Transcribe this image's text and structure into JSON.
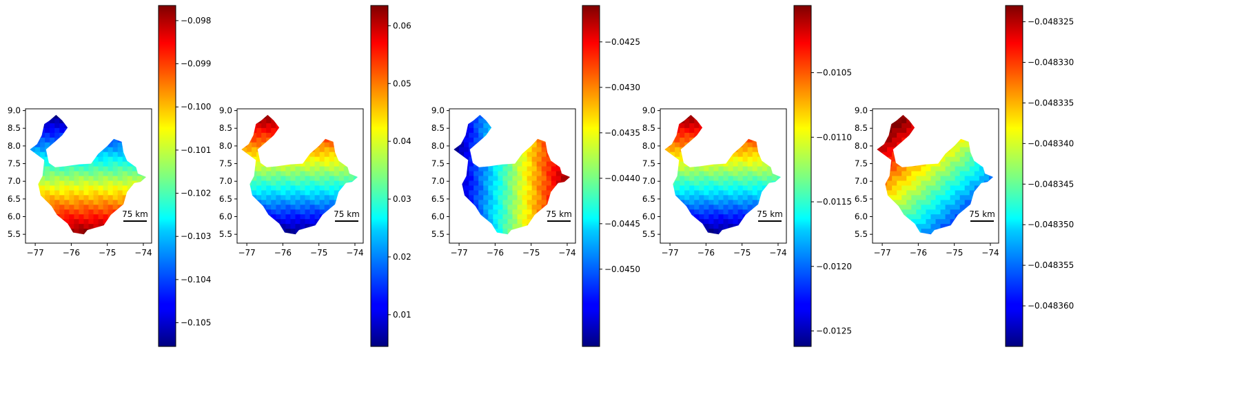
{
  "chart_data": [
    {
      "type": "heatmap",
      "title": "",
      "map": {
        "x_ticks": [
          -77,
          -76,
          -75,
          -74
        ],
        "y_ticks": [
          5.5,
          6.0,
          6.5,
          7.0,
          7.5,
          8.0,
          8.5,
          9.0
        ],
        "xlim": [
          -77.27,
          -73.77
        ],
        "ylim": [
          5.25,
          9.05
        ],
        "scale_bar": "75 km"
      },
      "colorbar": {
        "range": [
          -0.10555,
          -0.09765
        ],
        "ticks": [
          -0.098,
          -0.099,
          -0.1,
          -0.101,
          -0.102,
          -0.103,
          -0.104,
          -0.105
        ],
        "tick_labels": [
          "−0.098",
          "−0.099",
          "−0.100",
          "−0.101",
          "−0.102",
          "−0.103",
          "−0.104",
          "−0.105"
        ]
      },
      "gradient": {
        "direction": "south",
        "low_region": "north",
        "high_region": "south"
      }
    },
    {
      "type": "heatmap",
      "title": "",
      "map": {
        "x_ticks": [
          -77,
          -76,
          -75,
          -74
        ],
        "y_ticks": [
          5.5,
          6.0,
          6.5,
          7.0,
          7.5,
          8.0,
          8.5,
          9.0
        ],
        "xlim": [
          -77.27,
          -73.77
        ],
        "ylim": [
          5.25,
          9.05
        ],
        "scale_bar": "75 km"
      },
      "colorbar": {
        "range": [
          0.0045,
          0.0635
        ],
        "ticks": [
          0.06,
          0.05,
          0.04,
          0.03,
          0.02,
          0.01
        ],
        "tick_labels": [
          "0.06",
          "0.05",
          "0.04",
          "0.03",
          "0.02",
          "0.01"
        ]
      },
      "gradient": {
        "direction": "north",
        "low_region": "south",
        "high_region": "north"
      }
    },
    {
      "type": "heatmap",
      "title": "",
      "map": {
        "x_ticks": [
          -77,
          -76,
          -75,
          -74
        ],
        "y_ticks": [
          5.5,
          6.0,
          6.5,
          7.0,
          7.5,
          8.0,
          8.5,
          9.0
        ],
        "xlim": [
          -77.27,
          -73.77
        ],
        "ylim": [
          5.25,
          9.05
        ],
        "scale_bar": "75 km"
      },
      "colorbar": {
        "range": [
          -0.04585,
          -0.0421
        ],
        "ticks": [
          -0.0425,
          -0.043,
          -0.0435,
          -0.044,
          -0.0445,
          -0.045
        ],
        "tick_labels": [
          "−0.0425",
          "−0.0430",
          "−0.0435",
          "−0.0440",
          "−0.0445",
          "−0.0450"
        ]
      },
      "gradient": {
        "direction": "east",
        "low_region": "west",
        "high_region": "east"
      }
    },
    {
      "type": "heatmap",
      "title": "",
      "map": {
        "x_ticks": [
          -77,
          -76,
          -75,
          -74
        ],
        "y_ticks": [
          5.5,
          6.0,
          6.5,
          7.0,
          7.5,
          8.0,
          8.5,
          9.0
        ],
        "xlim": [
          -77.27,
          -73.77
        ],
        "ylim": [
          5.25,
          9.05
        ],
        "scale_bar": "75 km"
      },
      "colorbar": {
        "range": [
          -0.01262,
          -0.00998
        ],
        "ticks": [
          -0.0105,
          -0.011,
          -0.0115,
          -0.012,
          -0.0125
        ],
        "tick_labels": [
          "−0.0105",
          "−0.0110",
          "−0.0115",
          "−0.0120",
          "−0.0125"
        ]
      },
      "gradient": {
        "direction": "north",
        "low_region": "south",
        "high_region": "north"
      }
    },
    {
      "type": "heatmap",
      "title": "",
      "map": {
        "x_ticks": [
          -77,
          -76,
          -75,
          -74
        ],
        "y_ticks": [
          5.5,
          6.0,
          6.5,
          7.0,
          7.5,
          8.0,
          8.5,
          9.0
        ],
        "xlim": [
          -77.27,
          -73.77
        ],
        "ylim": [
          5.25,
          9.05
        ],
        "scale_bar": "75 km"
      },
      "colorbar": {
        "range": [
          -0.048365,
          -0.048323
        ],
        "ticks": [
          -0.048325,
          -0.04833,
          -0.048335,
          -0.04834,
          -0.048345,
          -0.04835,
          -0.048355,
          -0.04836
        ],
        "tick_labels": [
          "−0.048325",
          "−0.048330",
          "−0.048335",
          "−0.048340",
          "−0.048345",
          "−0.048350",
          "−0.048355",
          "−0.048360"
        ]
      },
      "gradient": {
        "direction": "northwest",
        "low_region": "south",
        "high_region": "west"
      }
    }
  ]
}
